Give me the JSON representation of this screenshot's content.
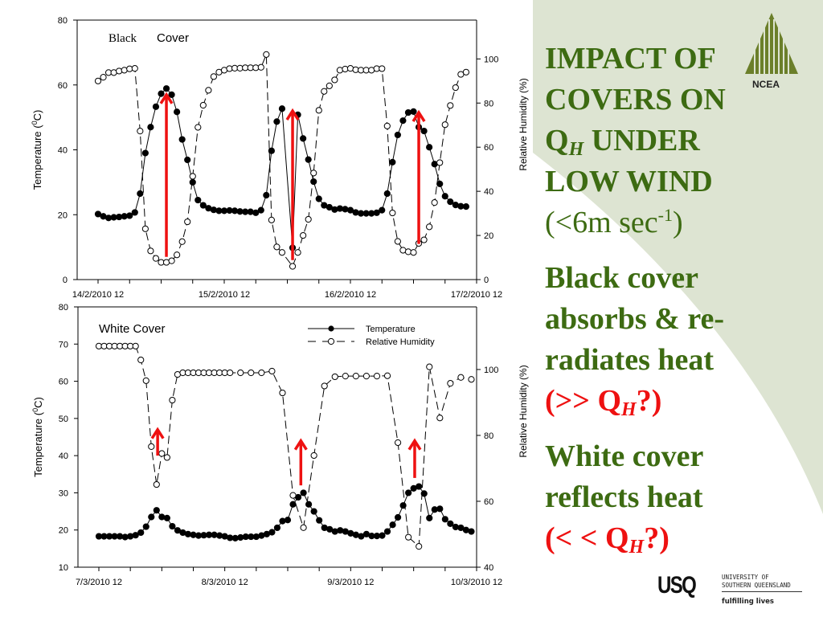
{
  "slide": {
    "title_lines": [
      "IMPACT OF",
      "COVERS ON",
      "Q",
      "H",
      " UNDER",
      "LOW WIND"
    ],
    "wind_note": {
      "pre": "(<6m sec",
      "sup": "-1",
      "post": ")"
    },
    "black_lines": [
      "Black cover",
      "absorbs & re-",
      "radiates heat"
    ],
    "black_q": {
      "pre": "(>> Q",
      "sub": "H",
      "post": "?)"
    },
    "white_lines": [
      "White cover",
      "reflects heat"
    ],
    "white_q": {
      "pre": "(< < Q",
      "sub": "H",
      "post": "?)"
    },
    "logos": {
      "ncea": "NCEA",
      "usq_mark": "USQ",
      "usq_name_1": "UNIVERSITY OF",
      "usq_name_2": "SOUTHERN QUEENSLAND",
      "usq_tagline": "fulfilling lives"
    },
    "colors": {
      "title_green": "#3d6b12",
      "accent_red": "#ee1111",
      "panel_bg": "#dde4d2"
    }
  },
  "chart_data": [
    {
      "type": "line",
      "title_parts": [
        "Black",
        "Cover"
      ],
      "xlabel": "",
      "ylabel": "Temperature (",
      "ylabel_sup": "0",
      "ylabel_post": "C)",
      "y2label": "Relative Humidity (%)",
      "x_unit": "hours since first tick",
      "xlim": [
        -4,
        72
      ],
      "x_ticks": [
        0,
        24,
        48,
        72
      ],
      "x_tick_labels": [
        "14/2/2010 12",
        "15/2/2010 12",
        "16/2/2010 12",
        "17/2/2010 12"
      ],
      "ylim": [
        0,
        80
      ],
      "y_ticks": [
        0,
        20,
        40,
        60,
        80
      ],
      "y2lim": [
        0,
        117.6
      ],
      "y2_ticks": [
        0,
        20,
        40,
        60,
        80,
        100
      ],
      "series": [
        {
          "name": "Temperature",
          "axis": "left",
          "marker": "filled-circle",
          "line": "solid",
          "values": [
            20.2,
            19.5,
            19,
            19.2,
            19.3,
            19.5,
            19.7,
            20.7,
            26.5,
            39,
            47,
            53.3,
            57.3,
            58.9,
            57,
            51.7,
            43.2,
            36.9,
            30,
            24.5,
            22.9,
            22,
            21.5,
            21.2,
            21.2,
            21.3,
            21.2,
            21,
            20.9,
            20.9,
            20.6,
            21.4,
            26,
            39.7,
            48.7,
            52.7,
            null,
            9.8,
            50.8,
            43.5,
            37,
            30.2,
            24.9,
            22.9,
            22.3,
            21.6,
            21.9,
            21.7,
            21.4,
            20.7,
            20.4,
            20.4,
            20.4,
            20.6,
            21.4,
            26.5,
            36.2,
            44.6,
            49,
            51.5,
            51.8,
            47,
            45.8,
            40.8,
            35.6,
            29.5,
            25.7,
            24,
            23,
            22.6,
            22.5
          ]
        },
        {
          "name": "Relative Humidity",
          "axis": "right",
          "marker": "open-circle",
          "line": "dashed",
          "values": [
            90,
            91.7,
            93.8,
            93.8,
            94.5,
            94.9,
            95.5,
            95.7,
            67.3,
            23,
            13,
            9.6,
            7.8,
            7.8,
            8.5,
            11.2,
            17.2,
            26.2,
            46.8,
            69,
            79,
            85.8,
            92,
            94,
            94.9,
            95.6,
            95.8,
            95.8,
            96,
            96,
            96,
            96.2,
            102,
            27,
            14.8,
            12.3,
            null,
            6,
            12.3,
            20,
            27.3,
            48.3,
            76.7,
            85.3,
            87.8,
            90.5,
            94.9,
            95.4,
            95.7,
            95.1,
            94.9,
            94.9,
            94.9,
            95.6,
            95.6,
            69.6,
            30.2,
            17.3,
            13.3,
            12.6,
            12.3,
            16.4,
            18,
            23.9,
            34.9,
            53,
            70.2,
            78.9,
            87,
            93,
            94
          ]
        }
      ],
      "annotations": [
        {
          "type": "arrow",
          "color": "#ee1111",
          "x": 13,
          "from": 7,
          "to": 57
        },
        {
          "type": "arrow",
          "color": "#ee1111",
          "x": 37,
          "from": 6,
          "to": 52
        },
        {
          "type": "arrow",
          "color": "#ee1111",
          "x": 61,
          "from": 11,
          "to": 51.5
        }
      ],
      "legend": null
    },
    {
      "type": "line",
      "title_parts": [
        "White Cover"
      ],
      "xlabel": "",
      "ylabel": "Temperature (",
      "ylabel_sup": "0",
      "ylabel_post": "C)",
      "y2label": "Relative Humidity (%)",
      "x_unit": "hours since first tick",
      "xlim": [
        -4,
        72
      ],
      "x_ticks": [
        0,
        24,
        48,
        72
      ],
      "x_tick_labels": [
        "7/3/2010 12",
        "8/3/2010 12",
        "9/3/2010 12",
        "10/3/2010 12"
      ],
      "ylim": [
        10,
        80
      ],
      "y_ticks": [
        10,
        20,
        30,
        40,
        50,
        60,
        70,
        80
      ],
      "y2lim": [
        40,
        119
      ],
      "y2_ticks": [
        40,
        60,
        80,
        100
      ],
      "series": [
        {
          "name": "Temperature",
          "axis": "left",
          "marker": "filled-circle",
          "line": "solid",
          "values": [
            18.3,
            18.3,
            18.3,
            18.3,
            18.3,
            18.1,
            18.3,
            18.6,
            19.3,
            20.9,
            23.5,
            25.3,
            23.5,
            23.2,
            21,
            19.9,
            19.3,
            18.9,
            18.7,
            18.5,
            18.6,
            18.7,
            18.7,
            18.5,
            18.3,
            17.9,
            17.8,
            18,
            18.2,
            18.2,
            18.2,
            18.5,
            18.9,
            19.4,
            20.6,
            22.4,
            22.7,
            26.9,
            28.8,
            30,
            26.9,
            25,
            22.6,
            20.6,
            20.2,
            19.6,
            19.9,
            19.6,
            19.1,
            18.7,
            18.3,
            18.9,
            18.4,
            18.4,
            18.5,
            19.6,
            21.4,
            23.4,
            26.6,
            30,
            31.2,
            31.7,
            29.8,
            23.2,
            25.5,
            25.7,
            22.9,
            21.7,
            20.8,
            20.6,
            20,
            19.6
          ]
        },
        {
          "name": "Relative Humidity",
          "axis": "right",
          "marker": "open-circle",
          "line": "dashed",
          "values": [
            107.1,
            107.1,
            107.1,
            107.1,
            107.1,
            107.1,
            107.1,
            107.1,
            102.9,
            96.6,
            76.6,
            65.1,
            74.5,
            73.3,
            90.7,
            98.5,
            99,
            99,
            99,
            99,
            99,
            99,
            99,
            99,
            99,
            99,
            null,
            99,
            null,
            99,
            null,
            99,
            null,
            99.5,
            null,
            92.9,
            null,
            61.8,
            null,
            52,
            null,
            73.9,
            null,
            95,
            null,
            97.8,
            null,
            98,
            null,
            98,
            null,
            98,
            null,
            98,
            null,
            98.1,
            null,
            77.8,
            null,
            49.1,
            null,
            46.3,
            null,
            100.8,
            null,
            85.3,
            null,
            95.8,
            null,
            97.6,
            null,
            97
          ]
        }
      ],
      "annotations": [
        {
          "type": "arrow",
          "color": "#ee1111",
          "x": 11.2,
          "from": 40,
          "to": 47
        },
        {
          "type": "arrow",
          "color": "#ee1111",
          "x": 38.5,
          "from": 32,
          "to": 44
        },
        {
          "type": "arrow",
          "color": "#ee1111",
          "x": 60.2,
          "from": 34,
          "to": 44
        }
      ],
      "legend": {
        "placement": "top-right",
        "entries": [
          "Temperature",
          "Relative Humidity"
        ]
      }
    }
  ]
}
